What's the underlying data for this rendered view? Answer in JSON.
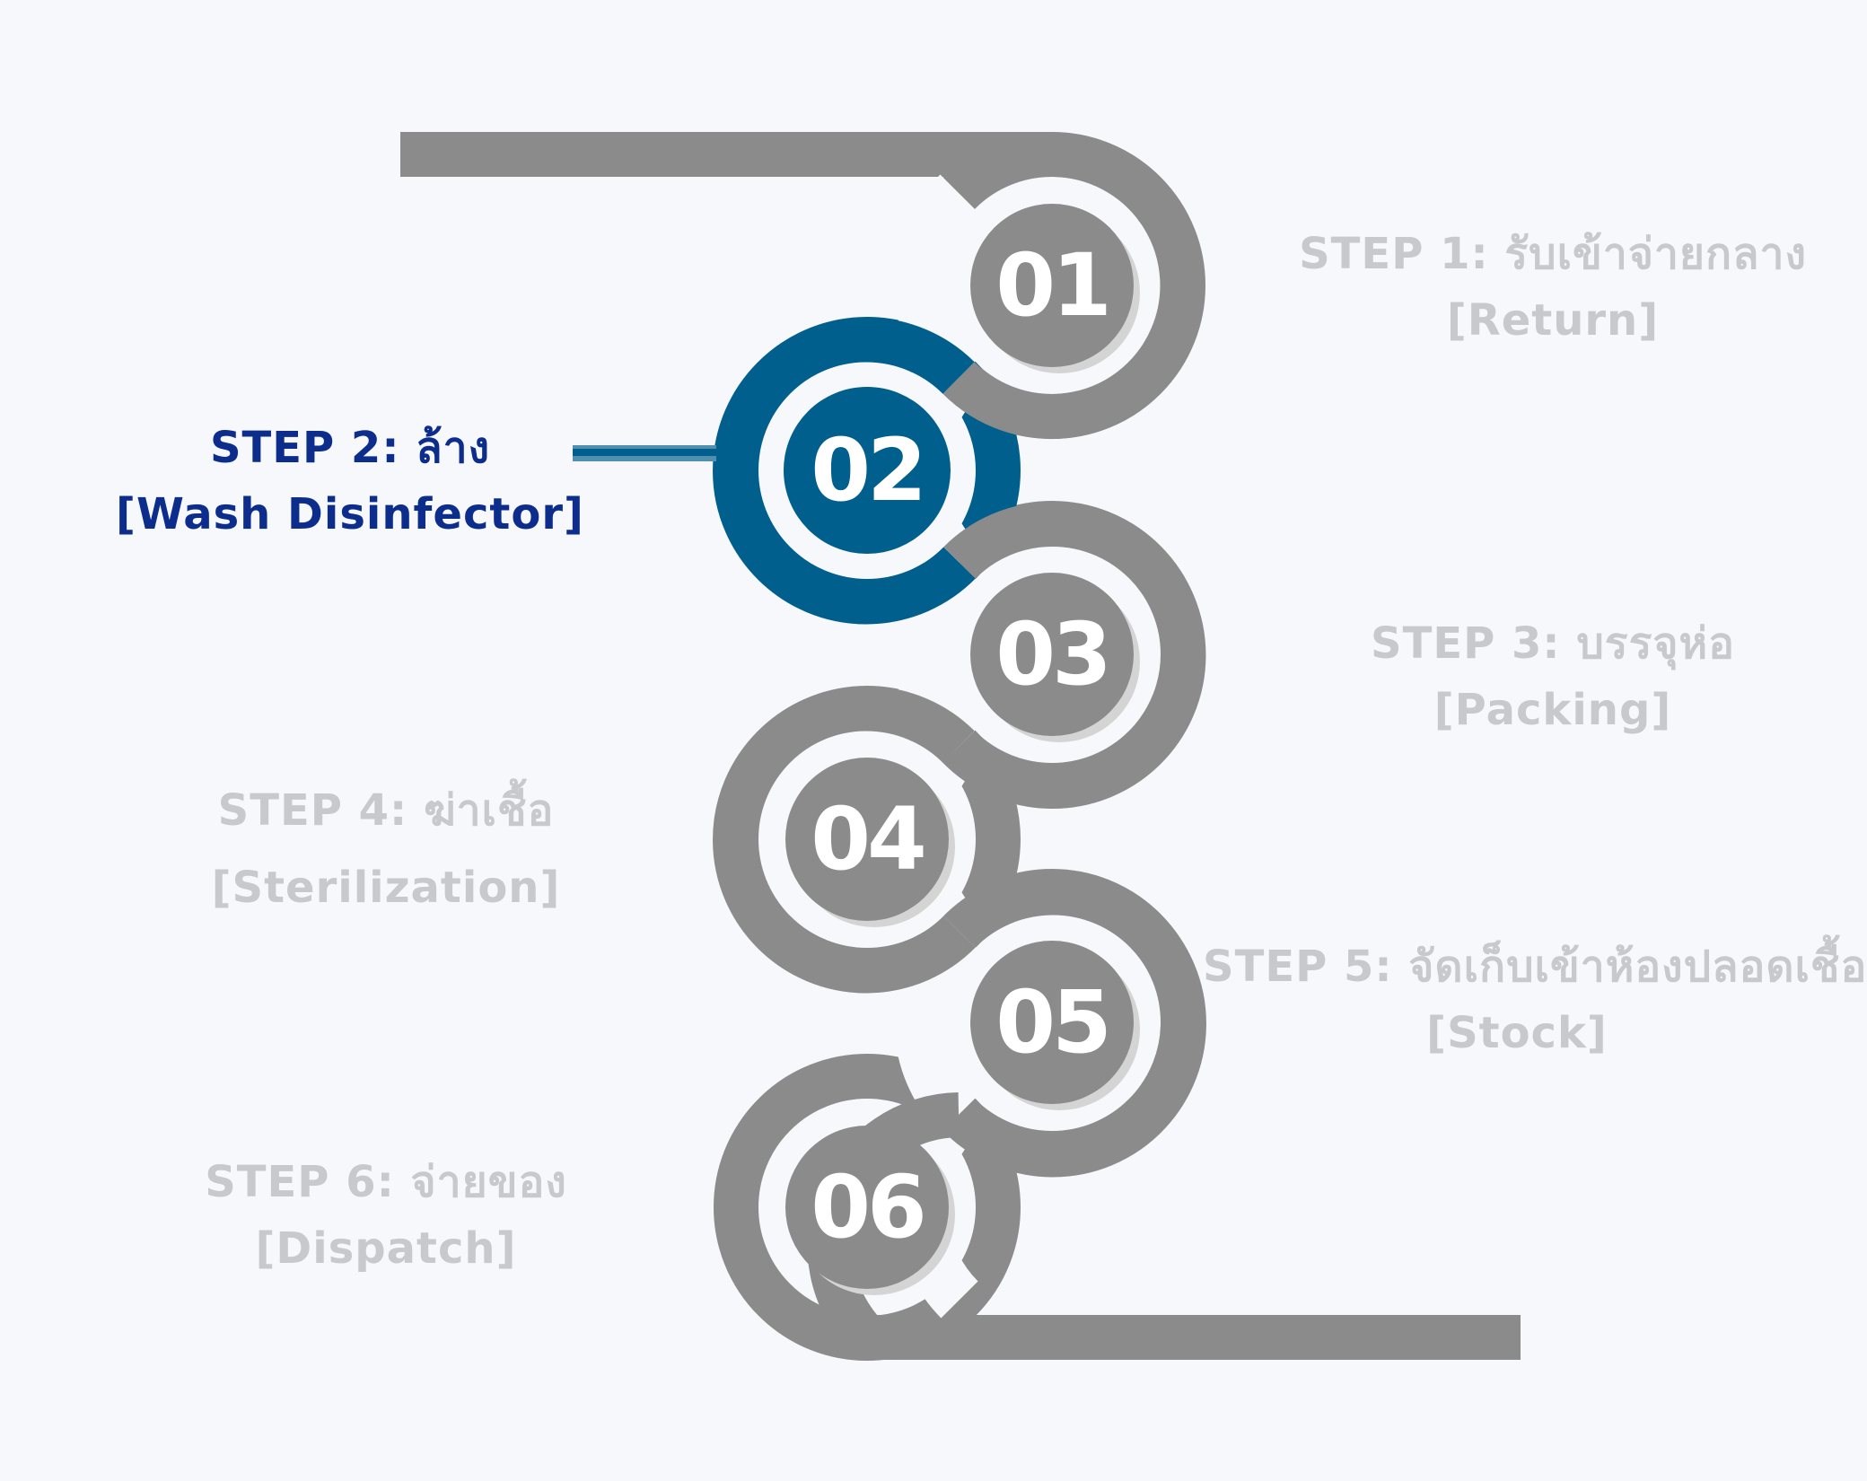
{
  "steps": [
    {
      "number": "01",
      "title": "STEP 1: รับเข้าจ่ายกลาง",
      "subtitle": "[Return]",
      "active": false
    },
    {
      "number": "02",
      "title": "STEP 2: ล้าง",
      "subtitle": "[Wash Disinfector]",
      "active": true
    },
    {
      "number": "03",
      "title": "STEP 3: บรรจุห่อ",
      "subtitle": "[Packing]",
      "active": false
    },
    {
      "number": "04",
      "title": "STEP 4: ฆ่าเชื้อ",
      "subtitle": "[Sterilization]",
      "active": false
    },
    {
      "number": "05",
      "title": "STEP 5: จัดเก็บเข้าห้องปลอดเชื้อ",
      "subtitle": "[Stock]",
      "active": false
    },
    {
      "number": "06",
      "title": "STEP 6: จ่ายของ",
      "subtitle": "[Dispatch]",
      "active": false
    }
  ],
  "colors": {
    "track": "#8b8b8b",
    "active": "#005f8c",
    "active_text": "#0d2d8c",
    "inactive_text": "#c7c9cc",
    "number": "#ffffff"
  }
}
